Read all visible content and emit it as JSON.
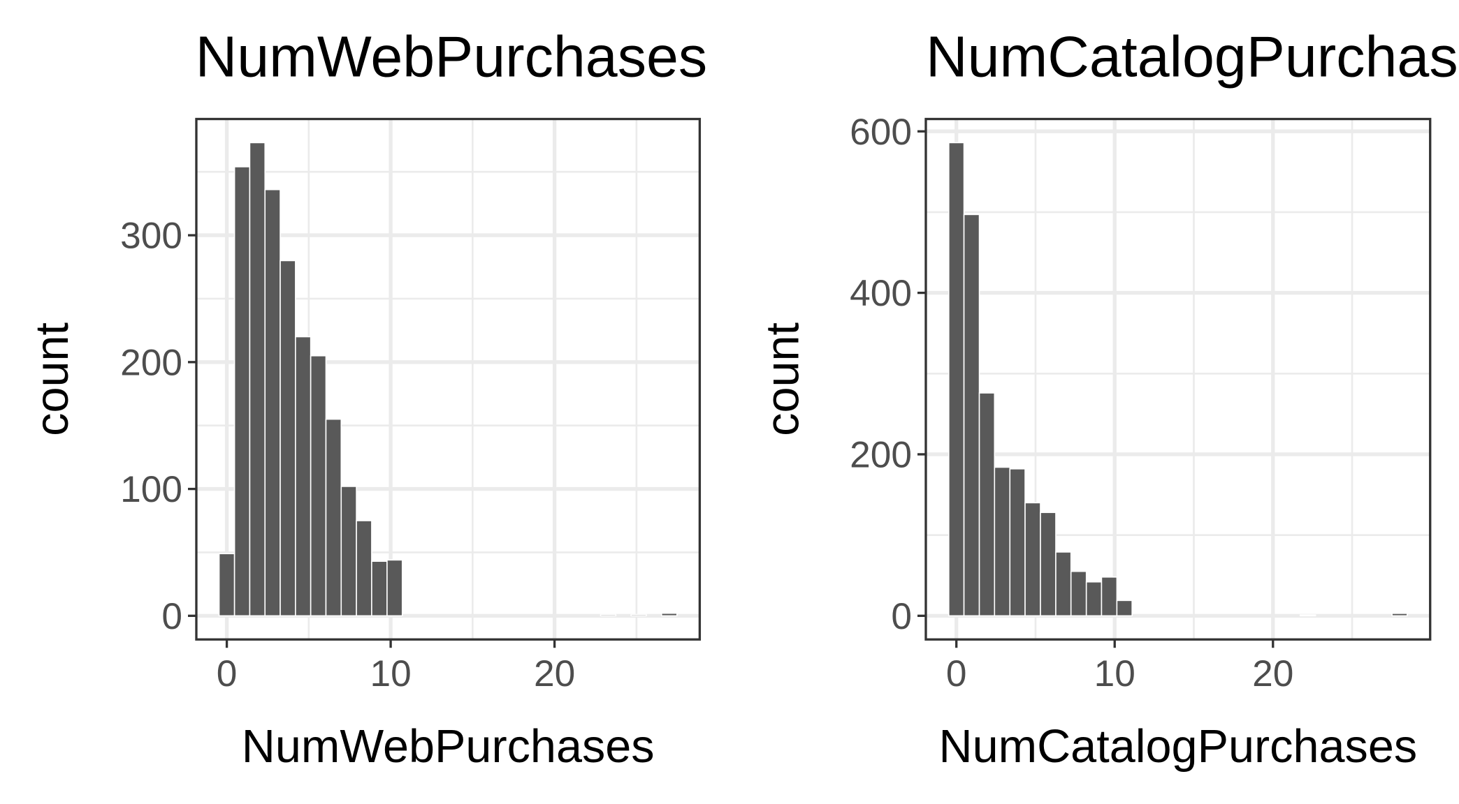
{
  "chart_data": [
    {
      "type": "histogram",
      "title": "NumWebPurchases",
      "x_label": "NumWebPurchases",
      "y_label": "count",
      "color": "#595959",
      "grid": true,
      "bins": [
        -0.47,
        0.47,
        1.4,
        2.33,
        3.26,
        4.19,
        5.12,
        6.05,
        6.98,
        7.91,
        8.84,
        9.78,
        10.71,
        11.64,
        12.57,
        13.5,
        14.43,
        15.36,
        16.29,
        17.22,
        18.16,
        19.09,
        20.02,
        20.95,
        21.88,
        22.81,
        23.74,
        24.67,
        25.6,
        26.53,
        27.47
      ],
      "values": [
        49,
        354,
        373,
        336,
        280,
        220,
        205,
        155,
        102,
        75,
        43,
        44,
        0,
        0,
        0,
        0,
        0,
        0,
        0,
        0,
        0,
        0,
        0,
        0,
        0,
        1,
        0,
        1,
        0,
        2
      ],
      "xlim": [
        -1.86,
        28.86
      ],
      "ylim": [
        -18.65,
        391.65
      ],
      "xticks": [
        0,
        10,
        20
      ],
      "yticks": [
        0,
        100,
        200,
        300
      ],
      "x_minor_ticks": [
        5,
        15,
        25
      ],
      "y_minor_ticks": [
        50,
        150,
        250,
        350
      ]
    },
    {
      "type": "histogram",
      "title": "NumCatalogPurchases",
      "x_label": "NumCatalogPurchases",
      "y_label": "count",
      "color": "#595959",
      "grid": true,
      "bins": [
        -0.48,
        0.48,
        1.45,
        2.41,
        3.38,
        4.34,
        5.31,
        6.28,
        7.24,
        8.21,
        9.17,
        10.14,
        11.1,
        12.07,
        13.03,
        14.0,
        14.97,
        15.93,
        16.9,
        17.86,
        18.83,
        19.79,
        20.76,
        21.72,
        22.69,
        23.66,
        24.62,
        25.59,
        26.55,
        27.52,
        28.48
      ],
      "values": [
        586,
        497,
        276,
        184,
        182,
        140,
        128,
        79,
        55,
        42,
        48,
        19,
        0,
        0,
        0,
        0,
        0,
        0,
        0,
        0,
        0,
        0,
        0,
        1,
        0,
        0,
        0,
        0,
        0,
        3
      ],
      "xlim": [
        -1.93,
        29.93
      ],
      "ylim": [
        -29.3,
        615.3
      ],
      "xticks": [
        0,
        10,
        20
      ],
      "yticks": [
        0,
        200,
        400,
        600
      ],
      "x_minor_ticks": [
        5,
        15,
        25
      ],
      "y_minor_ticks": [
        100,
        300,
        500
      ]
    }
  ]
}
